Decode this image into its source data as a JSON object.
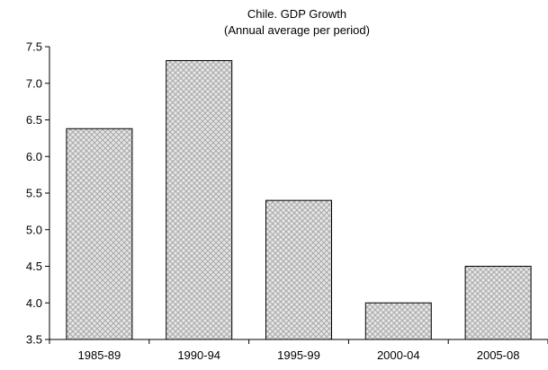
{
  "chart_data": {
    "type": "bar",
    "title": "Chile. GDP Growth",
    "subtitle": "(Annual average per period)",
    "xlabel": "",
    "ylabel": "",
    "categories": [
      "1985-89",
      "1990-94",
      "1995-99",
      "2000-04",
      "2005-08"
    ],
    "values": [
      6.38,
      7.31,
      5.4,
      4.0,
      4.5
    ],
    "ylim": [
      3.5,
      7.5
    ],
    "yticks": [
      "3.5",
      "4.0",
      "4.5",
      "5.0",
      "5.5",
      "6.0",
      "6.5",
      "7.0",
      "7.5"
    ],
    "grid": false,
    "legend": "none",
    "bar_fill": "#d9d9d9",
    "bar_pattern": "crosshatch",
    "bar_stroke": "#000000"
  }
}
